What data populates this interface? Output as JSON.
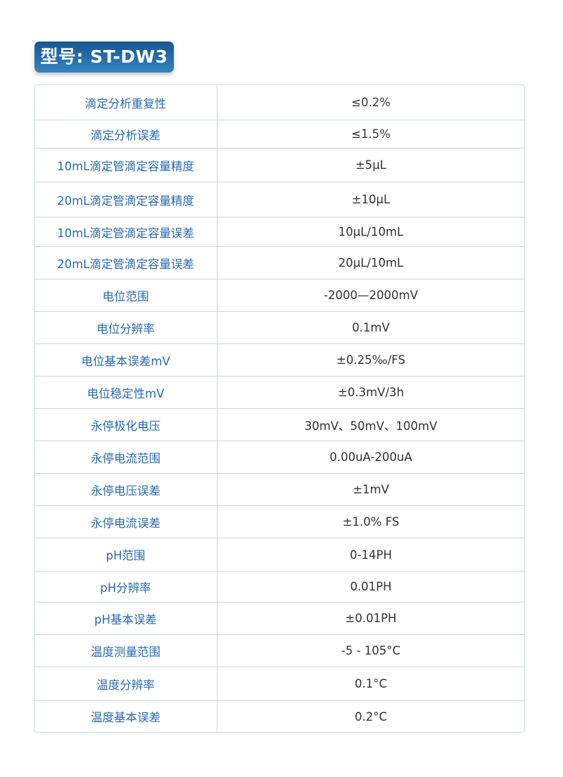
{
  "header": {
    "model_label": "型号: ST-DW3"
  },
  "colors": {
    "accent": "#1f6aa8",
    "label_text": "#2a6bb0",
    "border": "#c9d6e3"
  },
  "specs": [
    {
      "name": "滴定分析重复性",
      "value": "≤0.2%"
    },
    {
      "name": "滴定分析误差",
      "value": "≤1.5%"
    },
    {
      "name": "10mL滴定管滴定容量精度",
      "value": "±5μL"
    },
    {
      "name": "20mL滴定管滴定容量精度",
      "value": "±10μL"
    },
    {
      "name": "10mL滴定管滴定容量误差",
      "value": "10μL/10mL"
    },
    {
      "name": "20mL滴定管滴定容量误差",
      "value": "20μL/10mL"
    },
    {
      "name": "电位范围",
      "value": "-2000—2000mV"
    },
    {
      "name": "电位分辨率",
      "value": "0.1mV"
    },
    {
      "name": "电位基本误差mV",
      "value": "±0.25‰/FS"
    },
    {
      "name": "电位稳定性mV",
      "value": "±0.3mV/3h"
    },
    {
      "name": "永停极化电压",
      "value": "30mV、50mV、100mV"
    },
    {
      "name": "永停电流范围",
      "value": "0.00uA-200uA"
    },
    {
      "name": "永停电压误差",
      "value": "±1mV"
    },
    {
      "name": "永停电流误差",
      "value": "±1.0% FS"
    },
    {
      "name": "pH范围",
      "value": "0-14PH"
    },
    {
      "name": "pH分辨率",
      "value": "0.01PH"
    },
    {
      "name": "pH基本误差",
      "value": "±0.01PH"
    },
    {
      "name": "温度测量范围",
      "value": "-5 - 105°C"
    },
    {
      "name": "温度分辨率",
      "value": "0.1°C"
    },
    {
      "name": "温度基本误差",
      "value": "0.2°C"
    }
  ]
}
